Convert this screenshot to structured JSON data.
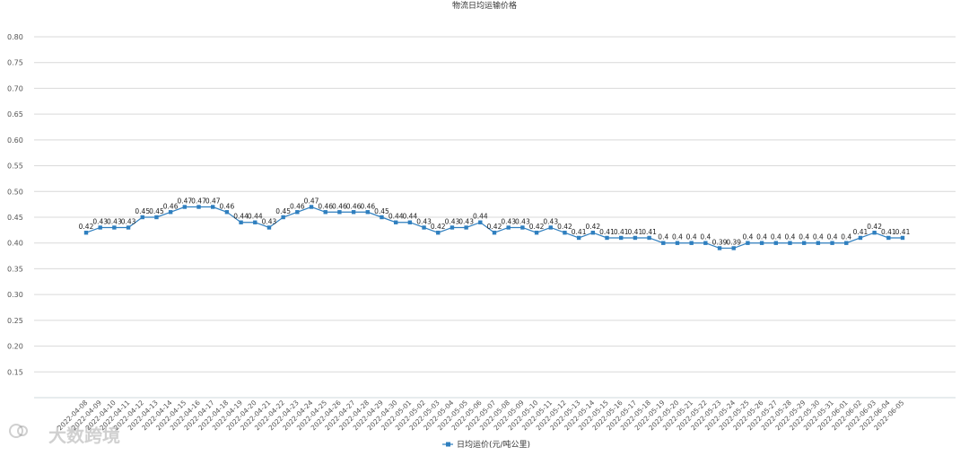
{
  "chart_data": {
    "type": "line",
    "title": "物流日均运输价格",
    "xlabel": "",
    "ylabel": "",
    "ylim": [
      0.1,
      0.8
    ],
    "yticks": [
      0.15,
      0.2,
      0.25,
      0.3,
      0.35,
      0.4,
      0.45,
      0.5,
      0.55,
      0.6,
      0.65,
      0.7,
      0.75,
      0.8
    ],
    "grid": true,
    "legend_position": "bottom",
    "series_color": "#2f7fbf",
    "x": [
      "2022-04-08",
      "2022-04-09",
      "2022-04-10",
      "2022-04-11",
      "2022-04-12",
      "2022-04-13",
      "2022-04-14",
      "2022-04-15",
      "2022-04-16",
      "2022-04-17",
      "2022-04-18",
      "2022-04-19",
      "2022-04-20",
      "2022-04-21",
      "2022-04-22",
      "2022-04-23",
      "2022-04-24",
      "2022-04-25",
      "2022-04-26",
      "2022-04-27",
      "2022-04-28",
      "2022-04-29",
      "2022-04-30",
      "2022-05-01",
      "2022-05-02",
      "2022-05-03",
      "2022-05-04",
      "2022-05-05",
      "2022-05-06",
      "2022-05-07",
      "2022-05-08",
      "2022-05-09",
      "2022-05-10",
      "2022-05-11",
      "2022-05-12",
      "2022-05-13",
      "2022-05-14",
      "2022-05-15",
      "2022-05-16",
      "2022-05-17",
      "2022-05-18",
      "2022-05-19",
      "2022-05-20",
      "2022-05-21",
      "2022-05-22",
      "2022-05-23",
      "2022-05-24",
      "2022-05-25",
      "2022-05-26",
      "2022-05-27",
      "2022-05-28",
      "2022-05-29",
      "2022-05-30",
      "2022-05-31",
      "2022-06-01",
      "2022-06-02",
      "2022-06-03",
      "2022-06-04",
      "2022-06-05"
    ],
    "series": [
      {
        "name": "日均运价(元/吨公里)",
        "values": [
          0.42,
          0.43,
          0.43,
          0.43,
          0.45,
          0.45,
          0.46,
          0.47,
          0.47,
          0.47,
          0.46,
          0.44,
          0.44,
          0.43,
          0.45,
          0.46,
          0.47,
          0.46,
          0.46,
          0.46,
          0.46,
          0.45,
          0.44,
          0.44,
          0.43,
          0.42,
          0.43,
          0.43,
          0.44,
          0.42,
          0.43,
          0.43,
          0.42,
          0.43,
          0.42,
          0.41,
          0.42,
          0.41,
          0.41,
          0.41,
          0.41,
          0.4,
          0.4,
          0.4,
          0.4,
          0.39,
          0.39,
          0.4,
          0.4,
          0.4,
          0.4,
          0.4,
          0.4,
          0.4,
          0.4,
          0.41,
          0.42,
          0.41,
          0.41
        ],
        "labels": [
          "0.42",
          "0.43",
          "0.43",
          "0.43",
          "0.45",
          "0.45",
          "0.46",
          "0.47",
          "0.47",
          "0.47",
          "0.46",
          "0.44",
          "0.44",
          "0.43",
          "0.45",
          "0.46",
          "0.47",
          "0.46",
          "0.46",
          "0.46",
          "0.46",
          "0.45",
          "0.44",
          "0.44",
          "0.43",
          "0.42",
          "0.43",
          "0.43",
          "0.44",
          "0.42",
          "0.43",
          "0.43",
          "0.42",
          "0.43",
          "0.42",
          "0.41",
          "0.42",
          "0.41",
          "0.41",
          "0.41",
          "0.41",
          "0.4",
          "0.4",
          "0.4",
          "0.4",
          "0.39",
          "0.39",
          "0.4",
          "0.4",
          "0.4",
          "0.4",
          "0.4",
          "0.4",
          "0.4",
          "0.4",
          "0.41",
          "0.42",
          "0.41",
          "0.41"
        ]
      }
    ]
  },
  "watermark": {
    "text": "大数跨境"
  }
}
